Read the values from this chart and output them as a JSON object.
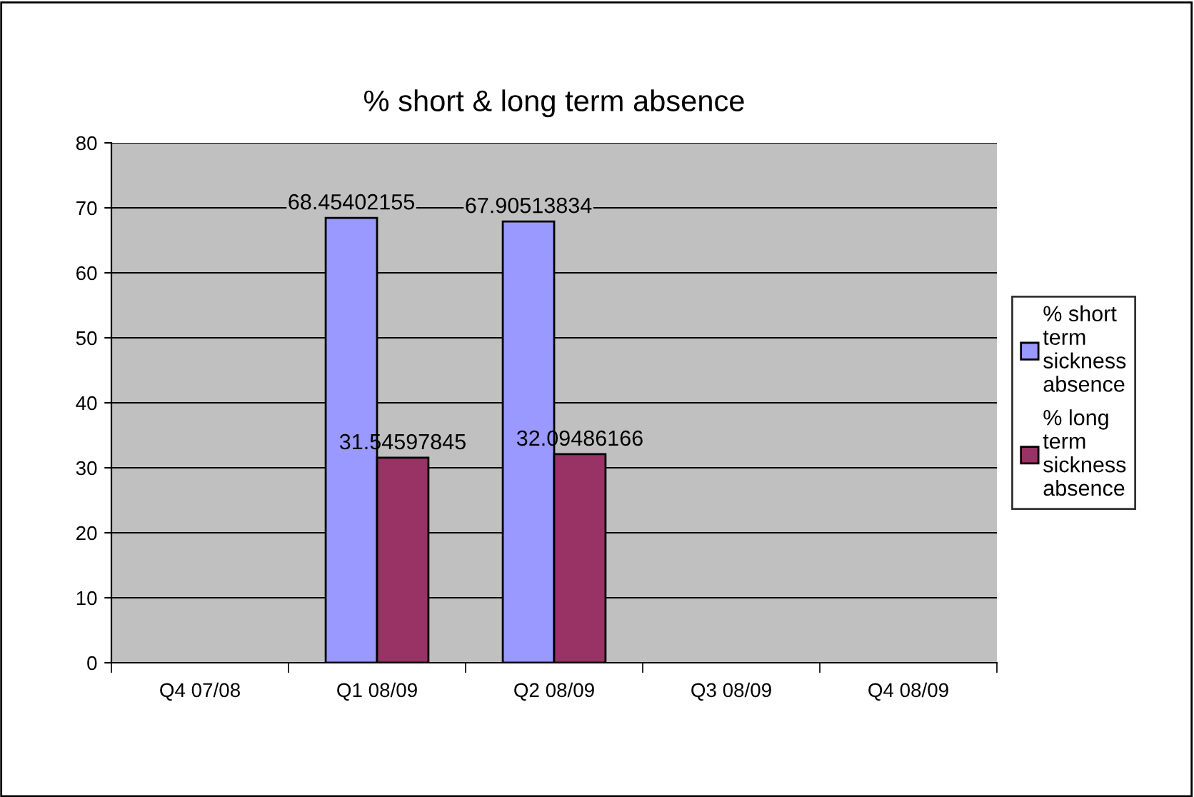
{
  "chart_data": {
    "type": "bar",
    "title": "% short & long term absence",
    "categories": [
      "Q4 07/08",
      "Q1 08/09",
      "Q2 08/09",
      "Q3 08/09",
      "Q4 08/09"
    ],
    "series": [
      {
        "name": "% short term sickness absence",
        "color": "#9999ff",
        "values": [
          null,
          68.45402155,
          67.90513834,
          null,
          null
        ]
      },
      {
        "name": "% long term sickness absence",
        "color": "#993366",
        "values": [
          null,
          31.54597845,
          32.09486166,
          null,
          null
        ]
      }
    ],
    "ylim": [
      0,
      80
    ],
    "yticks": [
      0,
      10,
      20,
      30,
      40,
      50,
      60,
      70,
      80
    ],
    "grid": "y",
    "legend": "right",
    "data_labels": true
  }
}
